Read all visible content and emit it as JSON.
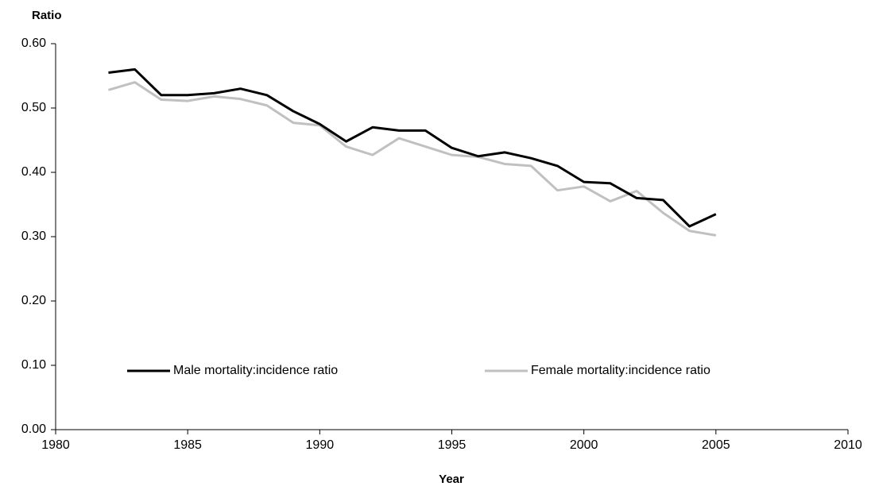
{
  "chart_data": {
    "type": "line",
    "xlabel": "Year",
    "ylabel": "Ratio",
    "x": [
      1982,
      1983,
      1984,
      1985,
      1986,
      1987,
      1988,
      1989,
      1990,
      1991,
      1992,
      1993,
      1994,
      1995,
      1996,
      1997,
      1998,
      1999,
      2000,
      2001,
      2002,
      2003,
      2004,
      2005
    ],
    "series": [
      {
        "name": "Male mortality:incidence ratio",
        "color": "#000000",
        "values": [
          0.555,
          0.56,
          0.52,
          0.52,
          0.523,
          0.53,
          0.52,
          0.495,
          0.475,
          0.448,
          0.47,
          0.465,
          0.465,
          0.438,
          0.425,
          0.431,
          0.422,
          0.41,
          0.385,
          0.383,
          0.36,
          0.357,
          0.316,
          0.335
        ]
      },
      {
        "name": "Female mortality:incidence ratio",
        "color": "#c0c0c0",
        "values": [
          0.528,
          0.54,
          0.513,
          0.511,
          0.518,
          0.514,
          0.504,
          0.477,
          0.473,
          0.44,
          0.427,
          0.453,
          0.44,
          0.427,
          0.424,
          0.413,
          0.41,
          0.372,
          0.378,
          0.355,
          0.371,
          0.337,
          0.309,
          0.302
        ]
      }
    ],
    "xlim": [
      1980,
      2010
    ],
    "xticks": [
      1980,
      1985,
      1990,
      1995,
      2000,
      2005,
      2010
    ],
    "ylim": [
      0,
      0.6
    ],
    "yticks": [
      {
        "value": 0,
        "label": "0.00"
      },
      {
        "value": 0.1,
        "label": "0.10"
      },
      {
        "value": 0.2,
        "label": "0.20"
      },
      {
        "value": 0.3,
        "label": "0.30"
      },
      {
        "value": 0.4,
        "label": "0.40"
      },
      {
        "value": 0.5,
        "label": "0.50"
      },
      {
        "value": 0.6,
        "label": "0.60"
      }
    ],
    "grid": false,
    "legend": "bottom"
  }
}
